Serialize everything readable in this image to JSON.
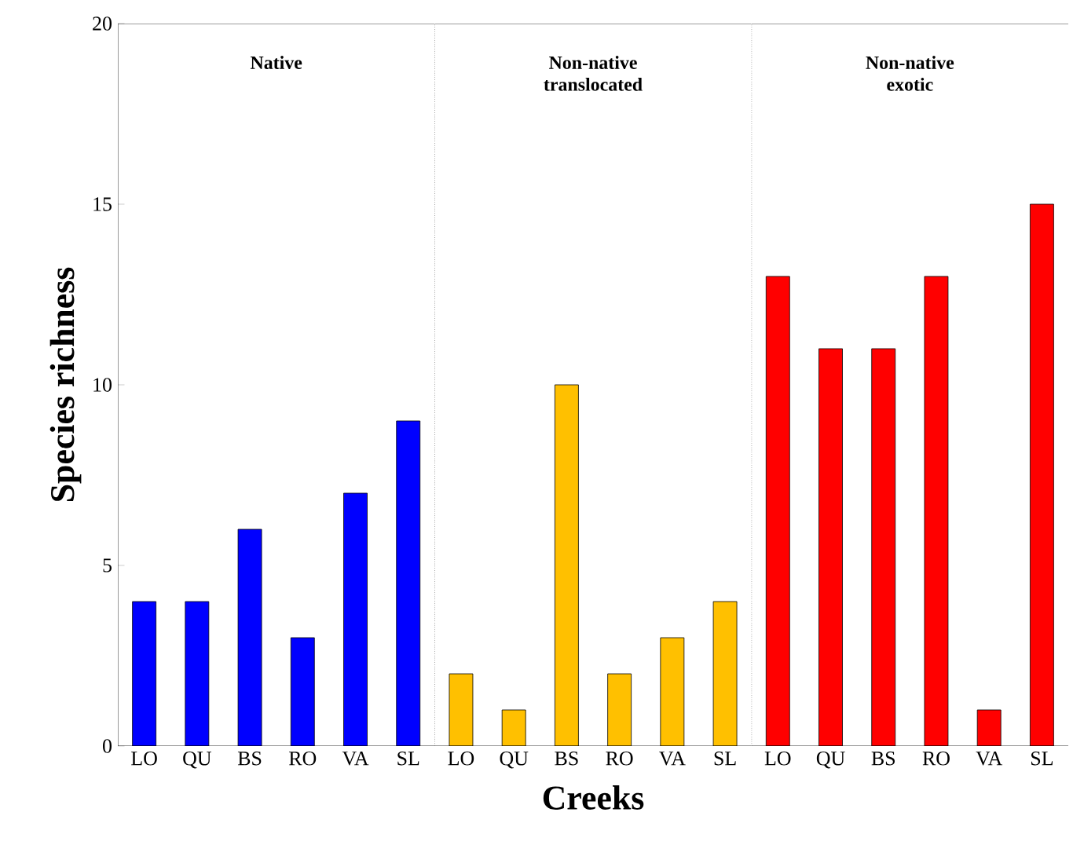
{
  "chart_data": [
    {
      "type": "bar",
      "title": "Native",
      "ylabel": "Species richness",
      "categories": [
        "LO",
        "QU",
        "BS",
        "RO",
        "VA",
        "SL"
      ],
      "values": [
        4,
        4,
        6,
        3,
        7,
        9
      ],
      "color": "#0000ff",
      "ylim": [
        0,
        20
      ],
      "yticks": [
        0,
        5,
        10,
        15,
        20
      ]
    },
    {
      "type": "bar",
      "title": "Non-native translocated",
      "xlabel": "Creeks",
      "categories": [
        "LO",
        "QU",
        "BS",
        "RO",
        "VA",
        "SL"
      ],
      "values": [
        2,
        1,
        10,
        2,
        3,
        4
      ],
      "color": "#ffc000",
      "ylim": [
        0,
        20
      ],
      "yticks": [
        0,
        5,
        10,
        15,
        20
      ],
      "tick_labels": "x"
    },
    {
      "type": "bar",
      "title": "Non-native exotic",
      "categories": [
        "LO",
        "QU",
        "BS",
        "RO",
        "VA",
        "SL"
      ],
      "values": [
        13,
        11,
        11,
        13,
        1,
        15
      ],
      "color": "#ff0000",
      "ylim": [
        0,
        20
      ],
      "yticks": [
        0,
        5,
        10,
        15,
        20
      ],
      "tick_labels": "x"
    }
  ]
}
